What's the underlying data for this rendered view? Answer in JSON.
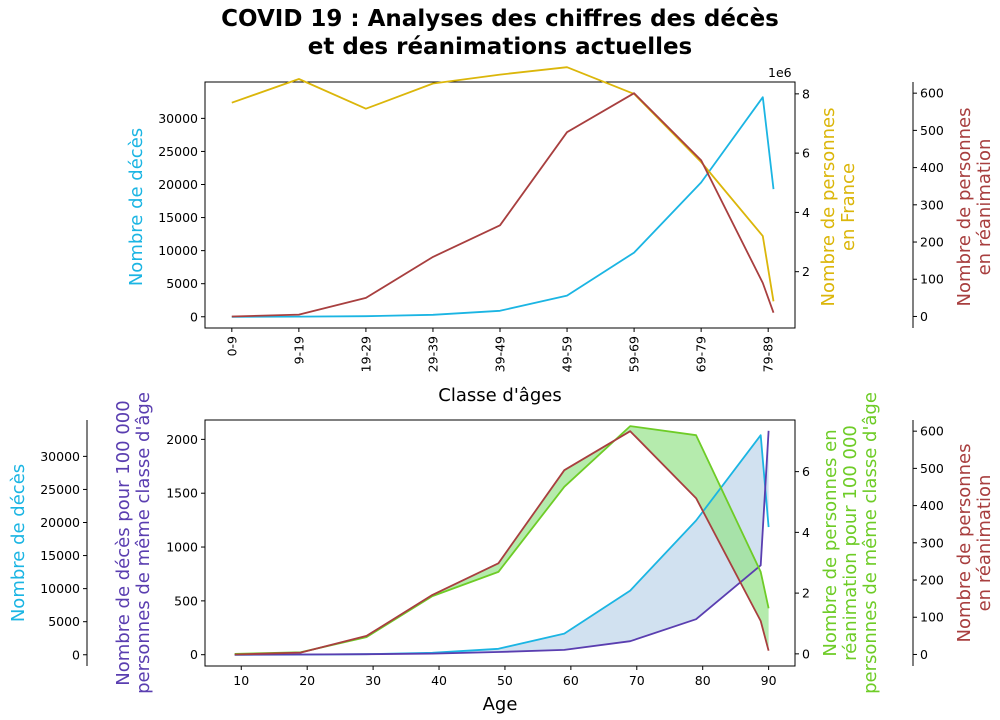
{
  "title_line1": "COVID 19 : Analyses des chiffres des décès",
  "title_line2": "et des réanimations actuelles",
  "colors": {
    "deces": "#1bb5e3",
    "population": "#dbb60a",
    "reanimation": "#a83f3f",
    "deces_100k": "#5a3eb0",
    "reanimation_100k": "#6ecc27",
    "fill_blue": "#c2d7eb",
    "fill_green": "#95e38a"
  },
  "chart_data": [
    {
      "type": "line",
      "x_categories": [
        "0-9",
        "9-19",
        "19-29",
        "29-39",
        "39-49",
        "49-59",
        "59-69",
        "69-79",
        "79-89"
      ],
      "xlabel": "Classe d'âges",
      "axes": {
        "left": {
          "label": "Nombre de décès",
          "ticks": [
            "0",
            "5000",
            "10000",
            "15000",
            "20000",
            "25000",
            "30000"
          ],
          "ylim": [
            -1700,
            35500
          ]
        },
        "right1": {
          "label_line1": "Nombre de personnes",
          "label_line2": "en France",
          "ticks": [
            "2",
            "4",
            "6",
            "8"
          ],
          "offset_text": "1e6",
          "ylim": [
            0.1,
            8.4
          ]
        },
        "right2": {
          "label_line1": "Nombre de personnes",
          "label_line2": "en réanimation",
          "ticks": [
            "0",
            "100",
            "200",
            "300",
            "400",
            "500",
            "600"
          ],
          "ylim": [
            -31,
            630
          ]
        }
      },
      "series": [
        {
          "axis": "left",
          "color_key": "deces",
          "x": [
            0,
            1,
            2,
            3,
            4,
            5,
            6,
            7,
            7.92,
            8.08
          ],
          "values": [
            0,
            20,
            80,
            300,
            900,
            3200,
            9700,
            20300,
            33200,
            19300
          ]
        },
        {
          "axis": "right1",
          "color_key": "population",
          "x": [
            0,
            1,
            2,
            3,
            4,
            5,
            6,
            7,
            7.92,
            8.08
          ],
          "values": [
            7.7,
            8.5,
            7.5,
            8.35,
            8.65,
            8.9,
            8.0,
            5.7,
            3.2,
            1.0
          ]
        },
        {
          "axis": "right2",
          "color_key": "reanimation",
          "x": [
            0,
            1,
            2,
            3,
            4,
            5,
            6,
            7,
            7.92,
            8.08
          ],
          "values": [
            0,
            5,
            50,
            160,
            245,
            495,
            600,
            420,
            90,
            10
          ]
        }
      ]
    },
    {
      "type": "area",
      "xlabel": "Age",
      "x_ticks": [
        "10",
        "20",
        "30",
        "40",
        "50",
        "60",
        "70",
        "80",
        "90"
      ],
      "xlim": [
        4.5,
        94
      ],
      "axes": {
        "left": {
          "label": "Nombre de décès",
          "ticks": [
            "0",
            "5000",
            "10000",
            "15000",
            "20000",
            "25000",
            "30000"
          ],
          "ylim": [
            -1700,
            35500
          ]
        },
        "left_inner": {
          "label_line1": "Nombre de décès pour 100 000",
          "label_line2": "personnes de même classe d'âge",
          "ticks": [
            "0",
            "500",
            "1000",
            "1500",
            "2000"
          ],
          "ylim": [
            -105,
            2180
          ]
        },
        "right1": {
          "label_line1": "Nombre de personnes en",
          "label_line2": "réanimation pour 100 000",
          "label_line3": "personnes de même classe d'âge",
          "ticks": [
            "0",
            "2",
            "4",
            "6"
          ],
          "ylim": [
            -0.4,
            7.7
          ]
        },
        "right2": {
          "label_line1": "Nombre de personnes",
          "label_line2": "en réanimation",
          "ticks": [
            "0",
            "100",
            "200",
            "300",
            "400",
            "500",
            "600"
          ],
          "ylim": [
            -31,
            630
          ]
        }
      },
      "series": [
        {
          "axis": "left",
          "color_key": "deces",
          "x": [
            9,
            19,
            29,
            39,
            49,
            59,
            69,
            79,
            88.8,
            90
          ],
          "values": [
            0,
            20,
            80,
            300,
            900,
            3200,
            9700,
            20300,
            33200,
            19300
          ]
        },
        {
          "axis": "left_inner",
          "color_key": "deces_100k",
          "x": [
            9,
            19,
            29,
            39,
            49,
            59,
            69,
            79,
            88.8,
            90
          ],
          "values": [
            0,
            2,
            5,
            10,
            25,
            45,
            125,
            330,
            830,
            2080
          ]
        },
        {
          "axis": "right1",
          "color_key": "reanimation_100k",
          "x": [
            9,
            19,
            29,
            39,
            49,
            59,
            69,
            79,
            88.8,
            90
          ],
          "values": [
            0,
            0.05,
            0.55,
            1.9,
            2.7,
            5.5,
            7.5,
            7.2,
            2.7,
            1.5
          ]
        },
        {
          "axis": "right2",
          "color_key": "reanimation",
          "x": [
            9,
            19,
            29,
            39,
            49,
            59,
            69,
            79,
            88.8,
            90
          ],
          "values": [
            0,
            5,
            50,
            160,
            245,
            495,
            600,
            420,
            90,
            10
          ]
        }
      ]
    }
  ]
}
